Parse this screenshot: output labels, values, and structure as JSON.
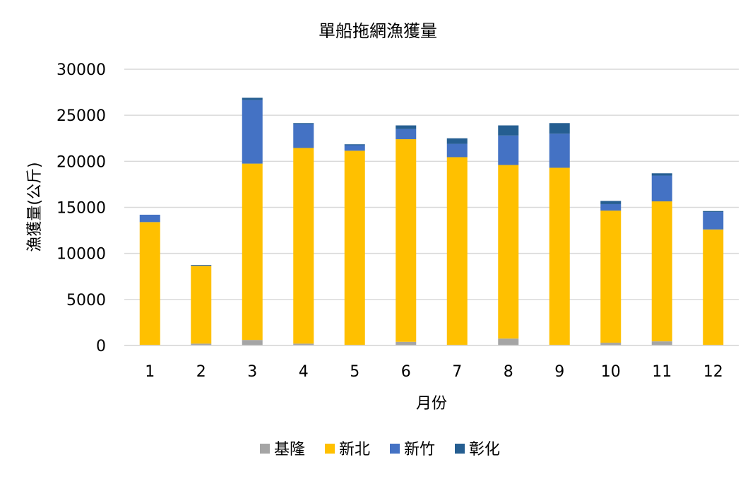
{
  "chart_data": {
    "type": "bar",
    "stacked": true,
    "title": "單船拖網漁獲量",
    "xlabel": "月份",
    "ylabel": "漁獲量(公斤)",
    "ylim": [
      0,
      30000
    ],
    "yticks": [
      0,
      5000,
      10000,
      15000,
      20000,
      25000,
      30000
    ],
    "grid": true,
    "legend_position": "bottom",
    "categories": [
      "1",
      "2",
      "3",
      "4",
      "5",
      "6",
      "7",
      "8",
      "9",
      "10",
      "11",
      "12"
    ],
    "series": [
      {
        "name": "基隆",
        "color": "#a5a5a5",
        "values": [
          50,
          200,
          600,
          200,
          50,
          400,
          50,
          750,
          50,
          300,
          450,
          50
        ]
      },
      {
        "name": "新北",
        "color": "#ffc000",
        "values": [
          13350,
          8450,
          19150,
          21250,
          21100,
          22000,
          20400,
          18850,
          19250,
          14350,
          15200,
          12550
        ]
      },
      {
        "name": "新竹",
        "color": "#4472c4",
        "values": [
          800,
          50,
          6900,
          2600,
          600,
          1100,
          1450,
          3200,
          3700,
          700,
          2800,
          1900
        ]
      },
      {
        "name": "彰化",
        "color": "#255e91",
        "values": [
          0,
          50,
          250,
          100,
          100,
          400,
          600,
          1100,
          1150,
          350,
          250,
          100
        ]
      }
    ]
  }
}
